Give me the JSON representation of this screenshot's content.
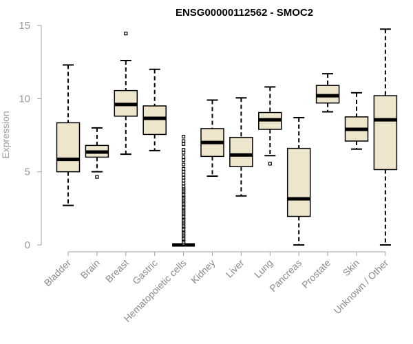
{
  "chart_data": {
    "type": "boxplot",
    "title": "ENSG00000112562 - SMOC2",
    "xlabel": "",
    "ylabel": "Expression",
    "ylim": [
      0,
      15
    ],
    "yticks": [
      0,
      5,
      10,
      15
    ],
    "box_color": "#ede6cc",
    "categories": [
      "Bladder",
      "Brain",
      "Breast",
      "Gastric",
      "Hematopoietic cells",
      "Kidney",
      "Liver",
      "Lung",
      "Pancreas",
      "Prostate",
      "Skin",
      "Unknown / Other"
    ],
    "boxes": [
      {
        "name": "Bladder",
        "min": 2.7,
        "q1": 5.0,
        "median": 5.85,
        "q3": 8.35,
        "max": 12.3,
        "outliers": []
      },
      {
        "name": "Brain",
        "min": 5.0,
        "q1": 6.0,
        "median": 6.35,
        "q3": 6.8,
        "max": 8.0,
        "outliers": [
          4.65
        ]
      },
      {
        "name": "Breast",
        "min": 6.2,
        "q1": 8.8,
        "median": 9.6,
        "q3": 10.55,
        "max": 12.6,
        "outliers": [
          14.45
        ]
      },
      {
        "name": "Gastric",
        "min": 6.45,
        "q1": 7.55,
        "median": 8.65,
        "q3": 9.5,
        "max": 12.0,
        "outliers": []
      },
      {
        "name": "Hematopoietic cells",
        "min": 0.0,
        "q1": 0.0,
        "median": 0.0,
        "q3": 0.0,
        "max": 0.0,
        "outliers": [
          0.1,
          0.2,
          0.3,
          0.4,
          0.5,
          0.6,
          0.7,
          0.8,
          0.9,
          1.0,
          1.1,
          1.2,
          1.3,
          1.4,
          1.5,
          1.6,
          1.7,
          1.8,
          1.9,
          2.0,
          2.1,
          2.2,
          2.3,
          2.4,
          2.5,
          2.6,
          2.7,
          2.8,
          2.9,
          3.0,
          3.1,
          3.2,
          3.3,
          3.4,
          3.5,
          3.6,
          3.7,
          3.8,
          3.9,
          4.0,
          4.2,
          4.4,
          4.6,
          4.8,
          5.0,
          5.2,
          5.5,
          5.8,
          6.0,
          6.3,
          6.5,
          6.9,
          7.1,
          7.4
        ]
      },
      {
        "name": "Kidney",
        "min": 4.7,
        "q1": 6.05,
        "median": 7.0,
        "q3": 7.95,
        "max": 9.9,
        "outliers": []
      },
      {
        "name": "Liver",
        "min": 3.35,
        "q1": 5.35,
        "median": 6.15,
        "q3": 7.35,
        "max": 10.05,
        "outliers": []
      },
      {
        "name": "Lung",
        "min": 6.1,
        "q1": 7.9,
        "median": 8.55,
        "q3": 9.05,
        "max": 10.8,
        "outliers": [
          5.55
        ]
      },
      {
        "name": "Pancreas",
        "min": 0.0,
        "q1": 1.95,
        "median": 3.15,
        "q3": 6.6,
        "max": 8.7,
        "outliers": []
      },
      {
        "name": "Prostate",
        "min": 9.1,
        "q1": 9.7,
        "median": 10.2,
        "q3": 10.9,
        "max": 11.7,
        "outliers": []
      },
      {
        "name": "Skin",
        "min": 6.55,
        "q1": 7.1,
        "median": 7.9,
        "q3": 8.75,
        "max": 10.4,
        "outliers": []
      },
      {
        "name": "Unknown / Other",
        "min": 0.0,
        "q1": 5.15,
        "median": 8.55,
        "q3": 10.2,
        "max": 14.75,
        "outliers": []
      }
    ]
  }
}
